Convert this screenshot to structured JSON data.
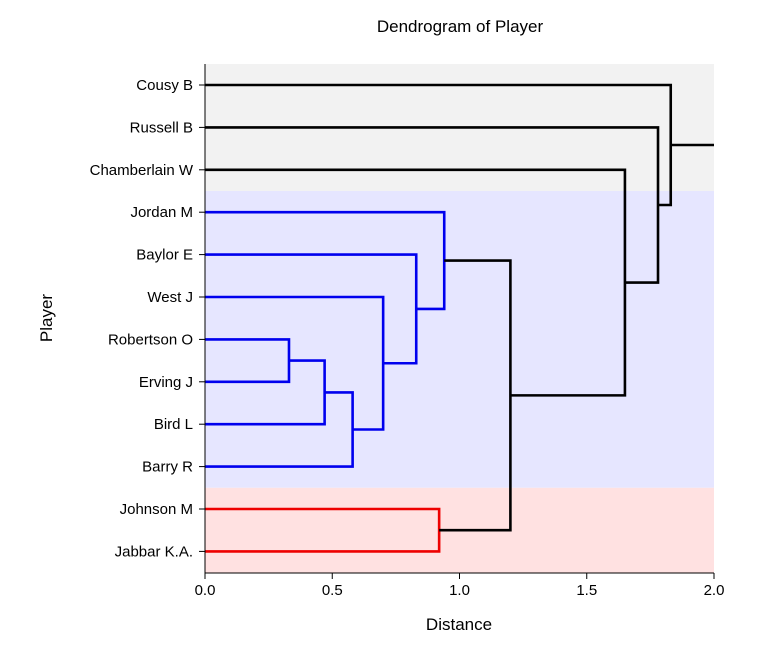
{
  "chart_data": {
    "type": "dendrogram",
    "title": "Dendrogram of Player",
    "xlabel": "Distance",
    "ylabel": "Player",
    "xlim": [
      0,
      2.0
    ],
    "xticks": [
      0,
      0.5,
      1.0,
      1.5,
      2.0
    ],
    "xtick_labels": [
      "0.0",
      "0.5",
      "1.0",
      "1.5",
      "2.0"
    ],
    "leaves": [
      "Cousy B",
      "Russell B",
      "Chamberlain W",
      "Jordan M",
      "Baylor E",
      "West J",
      "Robertson O",
      "Erving J",
      "Bird L",
      "Barry R",
      "Johnson M",
      "Jabbar K.A."
    ],
    "merges": [
      {
        "a": "Robertson O",
        "b": "Erving J",
        "height": 0.33,
        "color": "#0000ee"
      },
      {
        "a": "Robertson O+Erving J",
        "b": "Bird L",
        "height": 0.47,
        "color": "#0000ee"
      },
      {
        "a": "Barry R",
        "b": "Robertson O+Erving J+Bird L",
        "height": 0.58,
        "color": "#0000ee"
      },
      {
        "a": "West J",
        "b": "Robertson O+Erving J+Bird L+Barry R",
        "height": 0.7,
        "color": "#0000ee"
      },
      {
        "a": "Baylor E",
        "b": "West J+...",
        "height": 0.83,
        "color": "#0000ee"
      },
      {
        "a": "Jordan M",
        "b": "Baylor E+...",
        "height": 0.94,
        "color": "#0000ee"
      },
      {
        "a": "Johnson M",
        "b": "Jabbar K.A.",
        "height": 0.92,
        "color": "#ee0000"
      },
      {
        "a": "Blue cluster",
        "b": "Red cluster",
        "height": 1.2,
        "color": "#000000"
      },
      {
        "a": "Chamberlain W",
        "b": "Blue+Red",
        "height": 1.65,
        "color": "#000000"
      },
      {
        "a": "Russell B",
        "b": "Chamberlain W+...",
        "height": 1.78,
        "color": "#000000"
      },
      {
        "a": "Cousy B",
        "b": "Russell B+...",
        "height": 1.83,
        "color": "#000000"
      }
    ],
    "root_line_end": 2.0,
    "clusters": [
      {
        "members": [
          "Cousy B",
          "Russell B",
          "Chamberlain W"
        ],
        "color": "#f2f2f2"
      },
      {
        "members": [
          "Jordan M",
          "Baylor E",
          "West J",
          "Robertson O",
          "Erving J",
          "Bird L",
          "Barry R"
        ],
        "color": "#e6e6ff"
      },
      {
        "members": [
          "Johnson M",
          "Jabbar K.A."
        ],
        "color": "#ffe1e1"
      }
    ],
    "colors": {
      "blue": "#0000ee",
      "red": "#ee0000",
      "black": "#000000"
    }
  }
}
